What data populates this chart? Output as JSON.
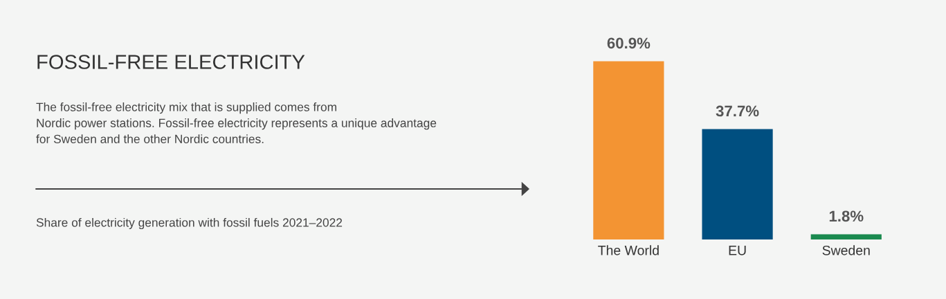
{
  "chart_data": {
    "type": "bar",
    "title": "FOSSIL-FREE ELECTRICITY",
    "subtitle": "The fossil-free electricity mix that is supplied comes from\nNordic power stations. Fossil-free electricity represents a unique advantage\nfor Sweden and the other Nordic countries.",
    "annotations": [
      "Share of electricity generation with fossil fuels 2021–2022"
    ],
    "categories": [
      "The World",
      "EU",
      "Sweden"
    ],
    "values": [
      60.9,
      37.7,
      1.8
    ],
    "colors": [
      "#f39433",
      "#004f80",
      "#1a8a4f"
    ],
    "value_labels": [
      "60.9%",
      "37.7%",
      "1.8%"
    ],
    "grid": false,
    "legend": false
  }
}
